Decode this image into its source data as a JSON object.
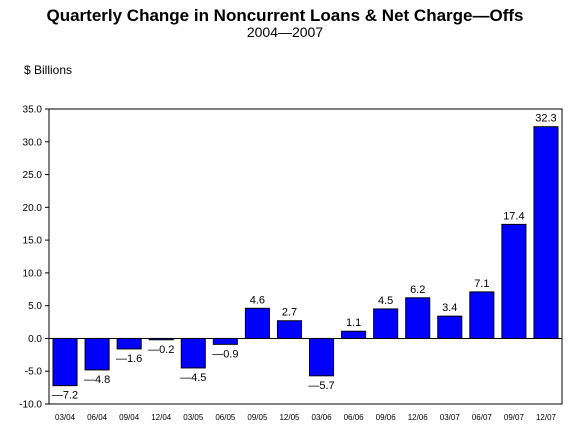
{
  "chart_data": {
    "type": "bar",
    "title": "Quarterly Change in Noncurrent Loans & Net Charge—Offs",
    "subtitle": "2004—2007",
    "ylabel": "$ Billions",
    "xlabel": "",
    "categories": [
      "03/04",
      "06/04",
      "09/04",
      "12/04",
      "03/05",
      "06/05",
      "09/05",
      "12/05",
      "03/06",
      "06/06",
      "09/06",
      "12/06",
      "03/07",
      "06/07",
      "09/07",
      "12/07"
    ],
    "values": [
      -7.2,
      -4.8,
      -1.6,
      -0.2,
      -4.5,
      -0.9,
      4.6,
      2.7,
      -5.7,
      1.1,
      4.5,
      6.2,
      3.4,
      7.1,
      17.4,
      32.3
    ],
    "value_labels": [
      "—7.2",
      "—4.8",
      "—1.6",
      "—0.2",
      "—4.5",
      "—0.9",
      "4.6",
      "2.7",
      "—5.7",
      "1.1",
      "4.5",
      "6.2",
      "3.4",
      "7.1",
      "17.4",
      "32.3"
    ],
    "ylim": [
      -10,
      35
    ],
    "yticks": [
      -10,
      -5,
      0,
      5,
      10,
      15,
      20,
      25,
      30,
      35
    ],
    "ytick_labels": [
      "-10.0",
      "-5.0",
      "0.0",
      "5.0",
      "10.0",
      "15.0",
      "20.0",
      "25.0",
      "30.0",
      "35.0"
    ],
    "grid": false,
    "bar_color": "#0000ff",
    "bar_stroke": "#000000"
  }
}
